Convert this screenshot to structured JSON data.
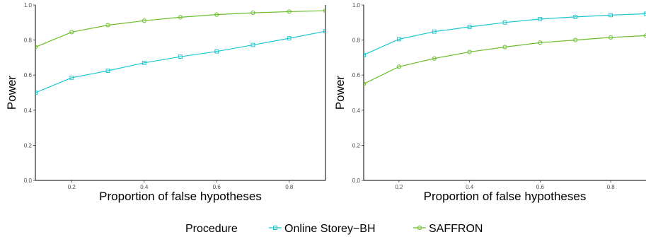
{
  "chart_data": [
    {
      "type": "line",
      "xlabel": "Proportion of false hypotheses",
      "ylabel": "Power",
      "xlim": [
        0.1,
        0.9
      ],
      "ylim": [
        0.0,
        1.0
      ],
      "xticks": [
        0.2,
        0.4,
        0.6,
        0.8
      ],
      "yticks": [
        0.0,
        0.2,
        0.4,
        0.6,
        0.8,
        1.0
      ],
      "grid": false,
      "x": [
        0.1,
        0.2,
        0.3,
        0.4,
        0.5,
        0.6,
        0.7,
        0.8,
        0.9
      ],
      "series": [
        {
          "name": "Online Storey−BH",
          "values": [
            0.5,
            0.585,
            0.625,
            0.67,
            0.705,
            0.735,
            0.772,
            0.81,
            0.85
          ]
        },
        {
          "name": "SAFFRON",
          "values": [
            0.76,
            0.845,
            0.885,
            0.91,
            0.93,
            0.945,
            0.955,
            0.962,
            0.967
          ]
        }
      ]
    },
    {
      "type": "line",
      "xlabel": "Proportion of false hypotheses",
      "ylabel": "Power",
      "xlim": [
        0.1,
        0.9
      ],
      "ylim": [
        0.0,
        1.0
      ],
      "xticks": [
        0.2,
        0.4,
        0.6,
        0.8
      ],
      "yticks": [
        0.0,
        0.2,
        0.4,
        0.6,
        0.8,
        1.0
      ],
      "grid": false,
      "x": [
        0.1,
        0.2,
        0.3,
        0.4,
        0.5,
        0.6,
        0.7,
        0.8,
        0.9
      ],
      "series": [
        {
          "name": "Online Storey−BH",
          "values": [
            0.715,
            0.805,
            0.848,
            0.875,
            0.9,
            0.92,
            0.932,
            0.942,
            0.95
          ]
        },
        {
          "name": "SAFFRON",
          "values": [
            0.55,
            0.648,
            0.695,
            0.732,
            0.76,
            0.785,
            0.8,
            0.815,
            0.825
          ]
        }
      ]
    }
  ],
  "legend": {
    "title": "Procedure",
    "position": "bottom",
    "items": [
      {
        "label": "Online Storey−BH",
        "color": "#1fc7cf",
        "marker": "square"
      },
      {
        "label": "SAFFRON",
        "color": "#6bbf2a",
        "marker": "circle"
      }
    ]
  },
  "colors": {
    "Online Storey−BH": "#1fc7cf",
    "SAFFRON": "#6bbf2a"
  }
}
